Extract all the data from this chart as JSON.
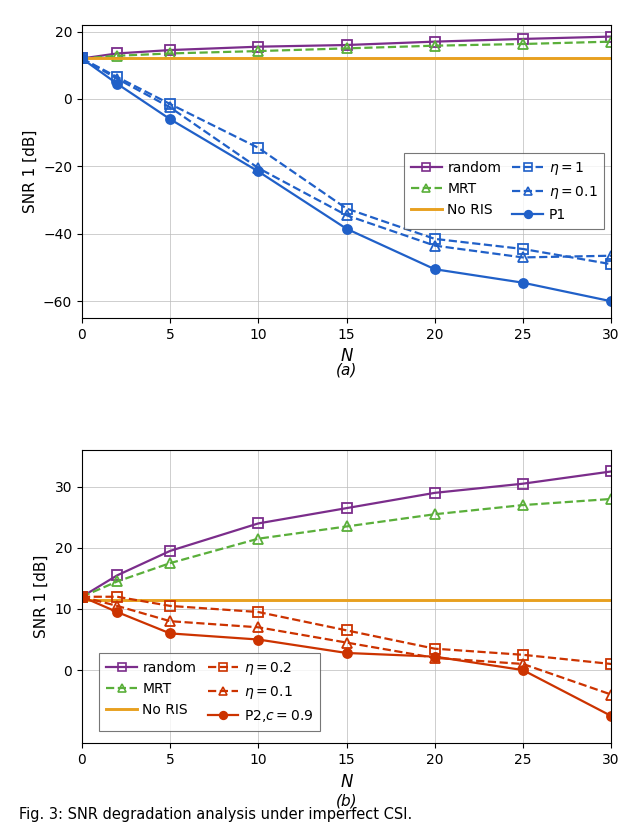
{
  "N": [
    0,
    2,
    5,
    10,
    15,
    20,
    25,
    30
  ],
  "a_random": [
    12.0,
    13.5,
    14.5,
    15.5,
    16.0,
    17.0,
    17.8,
    18.5
  ],
  "a_MRT": [
    12.0,
    12.8,
    13.5,
    14.2,
    15.0,
    15.8,
    16.3,
    17.0
  ],
  "a_NoRIS": [
    12.0,
    12.0,
    12.0,
    12.0,
    12.0,
    12.0,
    12.0,
    12.0
  ],
  "a_eta1": [
    12.0,
    6.5,
    -1.5,
    -14.5,
    -32.5,
    -41.5,
    -44.5,
    -49.0
  ],
  "a_eta01": [
    12.0,
    6.0,
    -2.5,
    -20.5,
    -34.5,
    -43.5,
    -47.0,
    -46.5
  ],
  "a_P1": [
    12.0,
    4.5,
    -6.0,
    -21.5,
    -38.5,
    -50.5,
    -54.5,
    -60.0
  ],
  "b_random": [
    12.0,
    15.5,
    19.5,
    24.0,
    26.5,
    29.0,
    30.5,
    32.5
  ],
  "b_MRT": [
    12.0,
    14.5,
    17.5,
    21.5,
    23.5,
    25.5,
    27.0,
    28.0
  ],
  "b_NoRIS": [
    11.5,
    11.5,
    11.5,
    11.5,
    11.5,
    11.5,
    11.5,
    11.5
  ],
  "b_eta02": [
    12.0,
    12.0,
    10.5,
    9.5,
    6.5,
    3.5,
    2.5,
    1.0
  ],
  "b_eta01": [
    12.0,
    10.5,
    8.0,
    7.0,
    4.5,
    2.0,
    1.0,
    -4.0
  ],
  "b_P2": [
    12.0,
    9.5,
    6.0,
    5.0,
    2.8,
    2.2,
    0.0,
    -7.5
  ],
  "color_purple": "#7B2D8B",
  "color_green": "#5AAF3A",
  "color_yellow": "#E8A020",
  "color_blue": "#2060C8",
  "color_orange": "#CC3300",
  "ylabel": "SNR 1 [dB]",
  "xlabel": "$N$",
  "label_a": "(a)",
  "label_b": "(b)",
  "caption": "Fig. 3: SNR degradation analysis under imperfect CSI.",
  "a_ylim": [
    -65,
    22
  ],
  "b_ylim": [
    -12,
    36
  ],
  "a_yticks": [
    -60,
    -40,
    -20,
    0,
    20
  ],
  "b_yticks": [
    0,
    10,
    20,
    30
  ],
  "xticks": [
    0,
    5,
    10,
    15,
    20,
    25,
    30
  ]
}
